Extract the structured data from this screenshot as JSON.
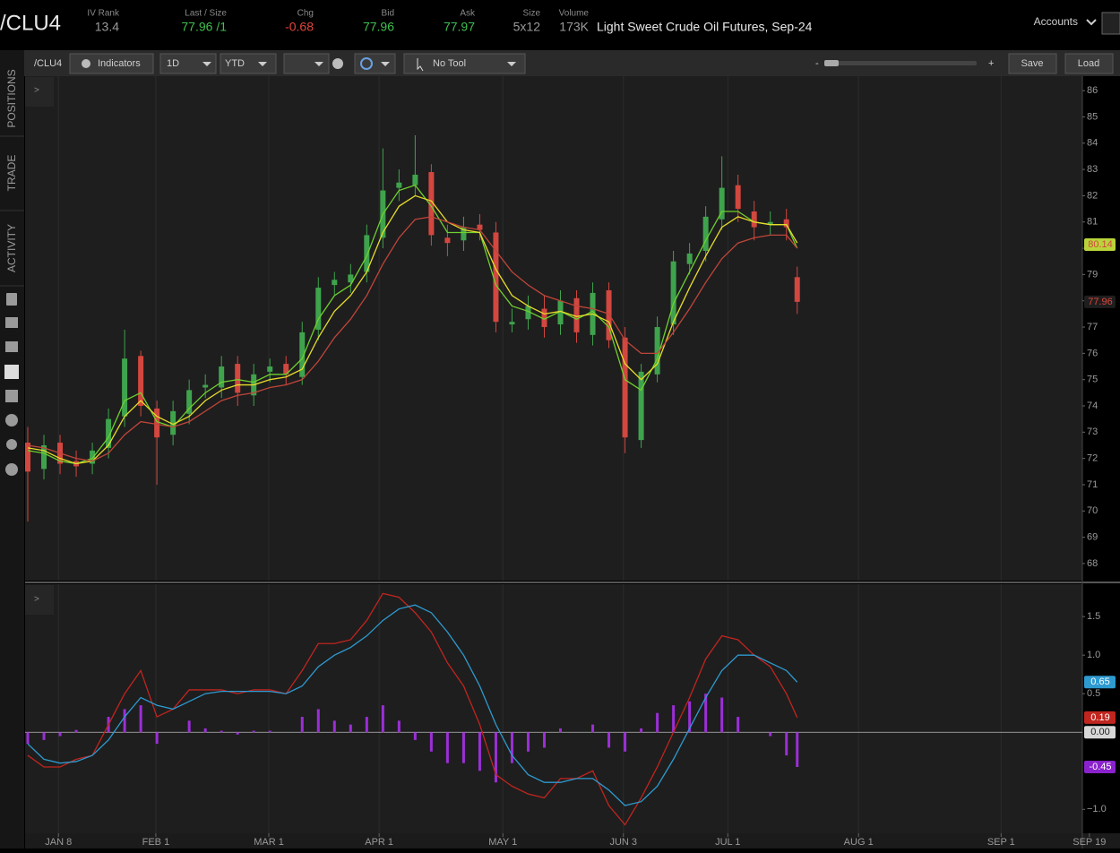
{
  "header": {
    "symbol": "/CLU4",
    "fields": [
      {
        "label": "IV Rank",
        "value": "13.4",
        "color": "#9a9a9a"
      },
      {
        "label": "Last / Size",
        "value": "77.96 /1",
        "color": "#3fbf4f"
      },
      {
        "label": "Chg",
        "value": "-0.68",
        "color": "#e0453b"
      },
      {
        "label": "Bid",
        "value": "77.96",
        "color": "#3fbf4f"
      },
      {
        "label": "Ask",
        "value": "77.97",
        "color": "#3fbf4f"
      },
      {
        "label": "Size",
        "value": "5x12",
        "color": "#9a9a9a"
      },
      {
        "label": "Volume",
        "value": "173K",
        "color": "#9a9a9a"
      }
    ],
    "description": "Light Sweet Crude Oil Futures, Sep-24",
    "accounts": "Accounts"
  },
  "toolbar": {
    "symbol": "/CLU4",
    "indicators": "Indicators",
    "aggregation": "1D",
    "range": "YTD",
    "tool": "No Tool",
    "zoom_out": "-",
    "zoom_in": "+",
    "save": "Save",
    "load": "Load"
  },
  "sidebar": [
    "POSITIONS",
    "TRADE",
    "ACTIVITY"
  ],
  "panel_toggle": ">",
  "chart_data": [
    {
      "type": "candlestick",
      "grid": "x",
      "up_color": "#3fa34d",
      "down_color": "#d2473f",
      "x": [
        0,
        3,
        6,
        9,
        12,
        15,
        18,
        21,
        24,
        27,
        30,
        33,
        36,
        39,
        42,
        45,
        48,
        51,
        54,
        57,
        60,
        63,
        66,
        69,
        72,
        75,
        78,
        81,
        84,
        87,
        90,
        93,
        96,
        99,
        102,
        105,
        108,
        111,
        114,
        117,
        120,
        123,
        126,
        129,
        132,
        135,
        138,
        141,
        143
      ],
      "open": [
        72.6,
        71.6,
        72.6,
        71.9,
        71.8,
        72.4,
        73.6,
        75.9,
        73.9,
        72.9,
        73.7,
        74.7,
        74.7,
        75.6,
        74.4,
        75.3,
        75.6,
        75.1,
        76.9,
        78.6,
        78.7,
        79.1,
        80.4,
        82.3,
        82.4,
        82.9,
        80.4,
        80.3,
        80.9,
        80.6,
        77.1,
        77.3,
        77.7,
        77.1,
        78.1,
        76.7,
        78.4,
        76.6,
        72.7,
        75.2,
        77.1,
        79.4,
        79.9,
        81.1,
        82.4,
        81.4,
        80.9,
        81.1,
        78.9
      ],
      "high": [
        73.2,
        72.9,
        72.9,
        72.3,
        72.6,
        73.9,
        76.9,
        76.1,
        74.2,
        74.2,
        75.0,
        75.2,
        75.9,
        75.9,
        75.6,
        75.8,
        75.9,
        77.2,
        78.9,
        79.1,
        79.4,
        80.9,
        83.8,
        83.0,
        84.3,
        83.2,
        80.9,
        81.2,
        81.3,
        81.0,
        77.7,
        78.2,
        78.2,
        78.4,
        78.4,
        78.7,
        78.7,
        77.0,
        75.6,
        77.4,
        79.9,
        80.2,
        81.6,
        83.5,
        82.8,
        81.8,
        81.4,
        81.5,
        79.3
      ],
      "low": [
        69.6,
        71.2,
        71.4,
        71.3,
        71.4,
        72.0,
        73.2,
        73.6,
        71.0,
        72.5,
        73.3,
        74.3,
        74.3,
        74.0,
        74.0,
        74.9,
        74.8,
        74.8,
        76.5,
        78.2,
        78.3,
        78.7,
        80.0,
        81.8,
        82.0,
        80.1,
        79.7,
        79.9,
        80.3,
        76.8,
        76.8,
        76.9,
        76.6,
        76.7,
        76.4,
        76.3,
        76.2,
        72.2,
        72.4,
        74.9,
        76.7,
        79.0,
        79.5,
        80.7,
        81.0,
        80.3,
        80.5,
        80.3,
        77.5
      ],
      "close": [
        71.5,
        72.5,
        71.8,
        71.7,
        72.3,
        73.5,
        75.8,
        74.0,
        72.8,
        73.8,
        74.6,
        74.8,
        75.5,
        74.5,
        75.2,
        75.5,
        75.2,
        76.8,
        78.5,
        78.8,
        79.0,
        80.5,
        82.2,
        82.5,
        82.8,
        80.5,
        80.2,
        80.8,
        80.7,
        77.2,
        77.2,
        77.8,
        77.0,
        78.0,
        76.8,
        78.3,
        76.5,
        72.8,
        75.3,
        77.0,
        79.5,
        79.8,
        81.2,
        82.3,
        81.5,
        80.8,
        81.0,
        80.8,
        77.96
      ],
      "series": [
        {
          "color": "#6fcf2f",
          "values": [
            72.3,
            72.2,
            71.9,
            71.8,
            72.0,
            72.8,
            74.2,
            74.5,
            73.4,
            73.2,
            73.9,
            74.5,
            74.9,
            75.0,
            74.9,
            75.2,
            75.2,
            75.8,
            77.3,
            78.2,
            78.6,
            79.7,
            81.3,
            82.2,
            82.4,
            81.6,
            80.6,
            80.6,
            80.6,
            78.6,
            77.8,
            77.6,
            77.3,
            77.6,
            77.3,
            77.6,
            77.0,
            75.0,
            74.6,
            75.8,
            77.9,
            79.1,
            80.3,
            81.4,
            81.4,
            81.0,
            80.9,
            80.9,
            80.0
          ]
        },
        {
          "color": "#e6dc2a",
          "values": [
            72.4,
            72.3,
            72.0,
            71.8,
            71.9,
            72.5,
            73.6,
            74.2,
            73.6,
            73.3,
            73.6,
            74.2,
            74.6,
            74.8,
            74.8,
            75.0,
            75.1,
            75.4,
            76.6,
            77.6,
            78.2,
            79.1,
            80.6,
            81.6,
            82.0,
            81.8,
            81.0,
            80.7,
            80.6,
            79.2,
            78.2,
            77.8,
            77.5,
            77.6,
            77.4,
            77.5,
            77.2,
            75.6,
            75.0,
            75.6,
            77.2,
            78.5,
            79.7,
            80.8,
            81.2,
            81.0,
            80.9,
            80.9,
            80.2
          ]
        },
        {
          "color": "#c0453a",
          "values": [
            72.5,
            72.4,
            72.2,
            72.0,
            71.9,
            72.2,
            72.9,
            73.4,
            73.3,
            73.2,
            73.4,
            73.8,
            74.2,
            74.4,
            74.5,
            74.7,
            74.8,
            75.0,
            75.7,
            76.6,
            77.3,
            78.2,
            79.4,
            80.4,
            81.1,
            81.2,
            81.0,
            80.8,
            80.7,
            79.9,
            79.1,
            78.6,
            78.2,
            78.0,
            77.8,
            77.7,
            77.5,
            76.5,
            76.0,
            76.0,
            76.8,
            77.7,
            78.7,
            79.6,
            80.2,
            80.4,
            80.5,
            80.5,
            80.0
          ]
        }
      ],
      "xlim": [
        -0.5,
        196
      ],
      "ylim": [
        67.35,
        86.55
      ],
      "yticks": [
        68,
        69,
        70,
        71,
        72,
        73,
        74,
        75,
        76,
        77,
        78,
        79,
        80,
        81,
        82,
        83,
        84,
        85,
        86
      ],
      "badges": [
        {
          "value": 80.14,
          "color": "#b9d43a",
          "text_color": "#d2473f"
        },
        {
          "value": 77.96,
          "color": "#1e1e1e",
          "text_color": "#e0453b"
        }
      ]
    },
    {
      "type": "macd",
      "grid": "x",
      "hist_color": "#9b2fd6",
      "x": [
        0,
        3,
        6,
        9,
        12,
        15,
        18,
        21,
        24,
        27,
        30,
        33,
        36,
        39,
        42,
        45,
        48,
        51,
        54,
        57,
        60,
        63,
        66,
        69,
        72,
        75,
        78,
        81,
        84,
        87,
        90,
        93,
        96,
        99,
        102,
        105,
        108,
        111,
        114,
        117,
        120,
        123,
        126,
        129,
        132,
        135,
        138,
        141,
        143
      ],
      "series": [
        {
          "color": "#c0251f",
          "values": [
            -0.3,
            -0.45,
            -0.45,
            -0.35,
            -0.3,
            0.1,
            0.5,
            0.8,
            0.2,
            0.3,
            0.55,
            0.55,
            0.55,
            0.5,
            0.55,
            0.55,
            0.5,
            0.8,
            1.15,
            1.15,
            1.2,
            1.45,
            1.8,
            1.75,
            1.55,
            1.3,
            0.9,
            0.6,
            0.1,
            -0.55,
            -0.7,
            -0.8,
            -0.85,
            -0.6,
            -0.6,
            -0.5,
            -0.95,
            -1.2,
            -0.85,
            -0.45,
            0,
            0.45,
            0.95,
            1.25,
            1.2,
            1.0,
            0.85,
            0.5,
            0.19
          ]
        },
        {
          "color": "#2e9ad0",
          "values": [
            -0.15,
            -0.35,
            -0.4,
            -0.38,
            -0.3,
            -0.1,
            0.2,
            0.45,
            0.35,
            0.3,
            0.4,
            0.5,
            0.53,
            0.53,
            0.53,
            0.53,
            0.5,
            0.6,
            0.85,
            1.0,
            1.1,
            1.25,
            1.45,
            1.6,
            1.65,
            1.55,
            1.3,
            1.0,
            0.6,
            0.1,
            -0.3,
            -0.55,
            -0.65,
            -0.65,
            -0.6,
            -0.6,
            -0.75,
            -0.95,
            -0.9,
            -0.7,
            -0.35,
            0.05,
            0.45,
            0.8,
            1.0,
            1.0,
            0.9,
            0.8,
            0.65
          ]
        }
      ],
      "histogram": [
        -0.15,
        -0.1,
        -0.05,
        0.03,
        0,
        0.2,
        0.3,
        0.35,
        -0.15,
        0,
        0.15,
        0.05,
        0.02,
        -0.03,
        0.02,
        0.02,
        0,
        0.2,
        0.3,
        0.15,
        0.1,
        0.2,
        0.35,
        0.15,
        -0.1,
        -0.25,
        -0.4,
        -0.4,
        -0.5,
        -0.65,
        -0.4,
        -0.25,
        -0.2,
        0.05,
        0,
        0.1,
        -0.2,
        -0.25,
        0.05,
        0.25,
        0.35,
        0.4,
        0.5,
        0.45,
        0.2,
        0,
        -0.05,
        -0.3,
        -0.45
      ],
      "xlim": [
        -0.5,
        196
      ],
      "ylim": [
        -1.31,
        1.92
      ],
      "yticks": [
        1.5,
        {
          "value": 1.0,
          "label": "1.0"
        },
        0.5,
        {
          "value": -1.0,
          "label": "−1.0"
        }
      ],
      "xticks": [
        {
          "value": 5.7,
          "label": "JAN 8"
        },
        {
          "value": 23.8,
          "label": "FEB 1"
        },
        {
          "value": 44.8,
          "label": "MAR 1"
        },
        {
          "value": 65.3,
          "label": "APR 1"
        },
        {
          "value": 88.3,
          "label": "MAY 1"
        },
        {
          "value": 110.7,
          "label": "JUN 3"
        },
        {
          "value": 130.1,
          "label": "JUL 1"
        },
        {
          "value": 154.4,
          "label": "AUG 1"
        },
        {
          "value": 180.9,
          "label": "SEP 1"
        },
        {
          "value": 197.3,
          "label": "SEP 19"
        }
      ],
      "badges": [
        {
          "value": 0.65,
          "color": "#2e9ad0",
          "text_color": "#ffffff"
        },
        {
          "value": 0.19,
          "color": "#c0251f",
          "text_color": "#ffffff"
        },
        {
          "value": 0,
          "label": "0.00",
          "color": "#d8d8d8",
          "text_color": "#222222"
        },
        {
          "value": -0.45,
          "color": "#8a22cc",
          "text_color": "#ffffff"
        }
      ]
    }
  ]
}
